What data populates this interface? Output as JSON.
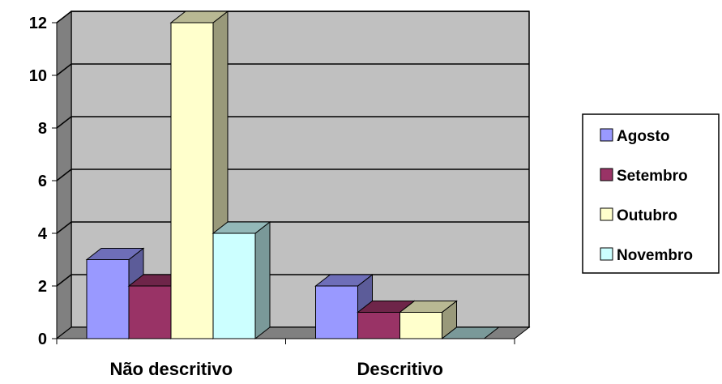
{
  "chart_data": {
    "type": "bar",
    "style": "3d-clustered-column",
    "categories": [
      "Não descritivo",
      "Descritivo"
    ],
    "series": [
      {
        "name": "Agosto",
        "values": [
          3,
          2
        ],
        "color": "#9999FF"
      },
      {
        "name": "Setembro",
        "values": [
          2,
          1
        ],
        "color": "#993366"
      },
      {
        "name": "Outubro",
        "values": [
          12,
          1
        ],
        "color": "#FFFFCC"
      },
      {
        "name": "Novembro",
        "values": [
          4,
          0
        ],
        "color": "#CCFFFF"
      }
    ],
    "ylim": [
      0,
      12
    ],
    "yticks": [
      "0",
      "2",
      "4",
      "6",
      "8",
      "10",
      "12"
    ],
    "grid": true,
    "plot_background": "#C0C0C0",
    "legend_position": "right"
  }
}
